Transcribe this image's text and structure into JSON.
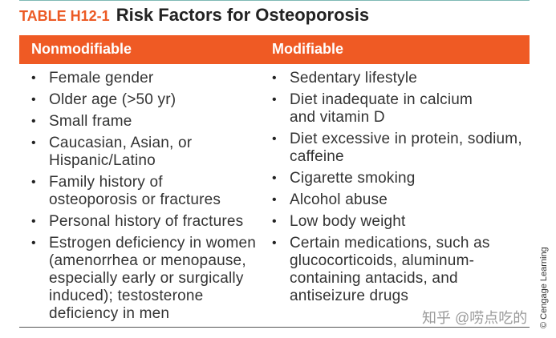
{
  "title": {
    "label": "TABLE H12-1",
    "text": "Risk Factors for Osteoporosis"
  },
  "table": {
    "headers": [
      "Nonmodifiable",
      "Modifiable"
    ],
    "columns": [
      [
        [
          "Female gender"
        ],
        [
          "Older age (>50 yr)"
        ],
        [
          "Small frame"
        ],
        [
          "Caucasian, Asian, or",
          "Hispanic/Latino"
        ],
        [
          "Family history of",
          "osteoporosis or fractures"
        ],
        [
          "Personal history of fractures"
        ],
        [
          "Estrogen deficiency in women",
          "(amenorrhea or menopause,",
          "especially early or surgically",
          "induced); testosterone",
          "deficiency in men"
        ]
      ],
      [
        [
          "Sedentary lifestyle"
        ],
        [
          "Diet inadequate in calcium",
          "and vitamin D"
        ],
        [
          "Diet excessive in protein, sodium,",
          "caffeine"
        ],
        [
          "Cigarette smoking"
        ],
        [
          "Alcohol abuse"
        ],
        [
          "Low body weight"
        ],
        [
          "Certain medications, such as",
          "glucocorticoids, aluminum-",
          "containing antacids, and",
          "antiseizure drugs"
        ]
      ]
    ]
  },
  "credit": "© Cengage Learning",
  "watermark": "知乎 @唠点吃的"
}
